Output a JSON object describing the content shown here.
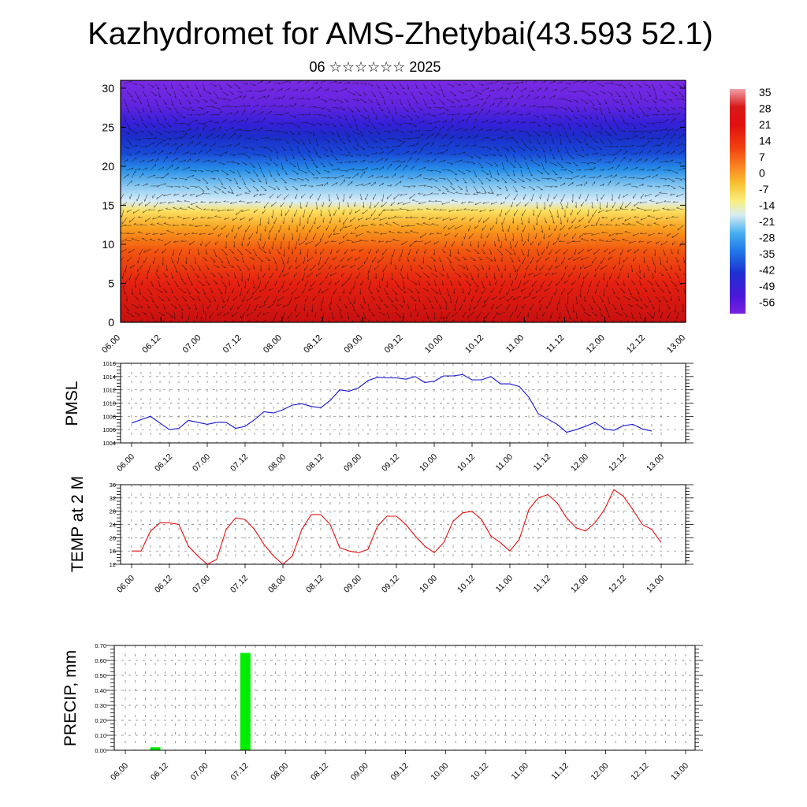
{
  "page": {
    "title": "Kazhydromet for AMS-Zhetybai(43.593 52.1)",
    "subtitle": "06 ☆☆☆☆☆☆ 2025"
  },
  "colors": {
    "pmsl_line": "#1414d2",
    "temp_line": "#e01010",
    "precip_bar": "#00ee00",
    "frame": "#000000"
  },
  "chart_data": [
    {
      "id": "section",
      "type": "heatmap",
      "title": "",
      "xlabel": "",
      "ylabel": "",
      "x_tick_labels": [
        "06.00",
        "06.12",
        "07.00",
        "07.12",
        "08.00",
        "08.12",
        "09.00",
        "09.12",
        "10.00",
        "10.12",
        "11.00",
        "11.12",
        "12.00",
        "12.12",
        "13.00"
      ],
      "yticks": [
        0,
        5,
        10,
        15,
        20,
        25,
        30
      ],
      "ylim": [
        0,
        31
      ],
      "colorbar": {
        "labels": [
          "35",
          "28",
          "21",
          "14",
          "7",
          "0",
          "-7",
          "-14",
          "-21",
          "-28",
          "-35",
          "-42",
          "-49",
          "-56"
        ],
        "range": [
          -60,
          38
        ]
      },
      "temperature_profile": {
        "levels": [
          0,
          5,
          10,
          12,
          15,
          18,
          20,
          22.5,
          25,
          28,
          31
        ],
        "values": [
          28,
          22,
          10,
          2,
          -8,
          -24,
          -36,
          -52,
          -60,
          -58,
          -56
        ]
      },
      "overlay": "wind vectors"
    },
    {
      "id": "pmsl",
      "type": "line",
      "ylabel": "PMSL",
      "ylim": [
        1004,
        1016
      ],
      "yticks": [
        1004,
        1006,
        1008,
        1010,
        1012,
        1014,
        1016
      ],
      "x_tick_labels": [
        "06.00",
        "06.12",
        "07.00",
        "07.12",
        "08.00",
        "08.12",
        "09.00",
        "09.12",
        "10.00",
        "10.12",
        "11.00",
        "11.12",
        "12.00",
        "12.12",
        "13.00"
      ],
      "series": [
        {
          "values": [
            1007.0,
            1007.5,
            1008.0,
            1007.0,
            1006.0,
            1006.2,
            1007.4,
            1007.1,
            1006.8,
            1007.1,
            1007.1,
            1006.2,
            1006.5,
            1007.5,
            1008.7,
            1008.5,
            1009.0,
            1009.7,
            1009.9,
            1009.5,
            1009.3,
            1010.4,
            1012.0,
            1011.8,
            1012.3,
            1013.4,
            1013.9,
            1013.8,
            1013.8,
            1013.6,
            1014.0,
            1013.1,
            1013.3,
            1014.1,
            1014.1,
            1014.3,
            1013.5,
            1013.5,
            1014.0,
            1012.9,
            1012.9,
            1012.5,
            1010.9,
            1008.4,
            1007.6,
            1006.8,
            1005.6,
            1006.0,
            1006.5,
            1007.1,
            1006.1,
            1005.9,
            1006.6,
            1006.8,
            1006.1,
            1005.8
          ]
        }
      ]
    },
    {
      "id": "temp",
      "type": "line",
      "ylabel": "TEMP at 2 M",
      "ylim": [
        12,
        36
      ],
      "yticks": [
        12,
        16,
        20,
        24,
        28,
        32,
        36
      ],
      "x_tick_labels": [
        "06.00",
        "06.12",
        "07.00",
        "07.12",
        "08.00",
        "08.12",
        "09.00",
        "09.12",
        "10.00",
        "10.12",
        "11.00",
        "11.12",
        "12.00",
        "12.12",
        "13.00"
      ],
      "series": [
        {
          "values": [
            16,
            16,
            22,
            24.5,
            24.5,
            24,
            17.5,
            14.5,
            12,
            13.5,
            22.5,
            26,
            25.5,
            22.5,
            18,
            14.5,
            12,
            14.5,
            22.5,
            27,
            27,
            24,
            17,
            16,
            15.5,
            16.5,
            23.5,
            26.5,
            26.5,
            24,
            20.5,
            17.5,
            15.5,
            18.5,
            25,
            27.5,
            28,
            25.5,
            20.5,
            18.5,
            16,
            19.5,
            28.5,
            32,
            33,
            30.5,
            26,
            23,
            22,
            24.5,
            28.5,
            34.5,
            32.5,
            28.5,
            24,
            22.5,
            18.5
          ]
        }
      ]
    },
    {
      "id": "precip",
      "type": "bar",
      "ylabel": "PRECIP, mm",
      "ylim": [
        0,
        0.7
      ],
      "yticks": [
        "0.00",
        "0.10",
        "0.20",
        "0.30",
        "0.40",
        "0.50",
        "0.60",
        "0.70"
      ],
      "x_tick_labels": [
        "06.00",
        "06.12",
        "07.00",
        "07.12",
        "08.00",
        "08.12",
        "09.00",
        "09.12",
        "10.00",
        "10.12",
        "11.00",
        "11.12",
        "12.00",
        "12.12",
        "13.00"
      ],
      "bars": [
        {
          "hour": 9,
          "value": 0.02
        },
        {
          "hour": 36,
          "value": 0.65
        }
      ]
    }
  ]
}
